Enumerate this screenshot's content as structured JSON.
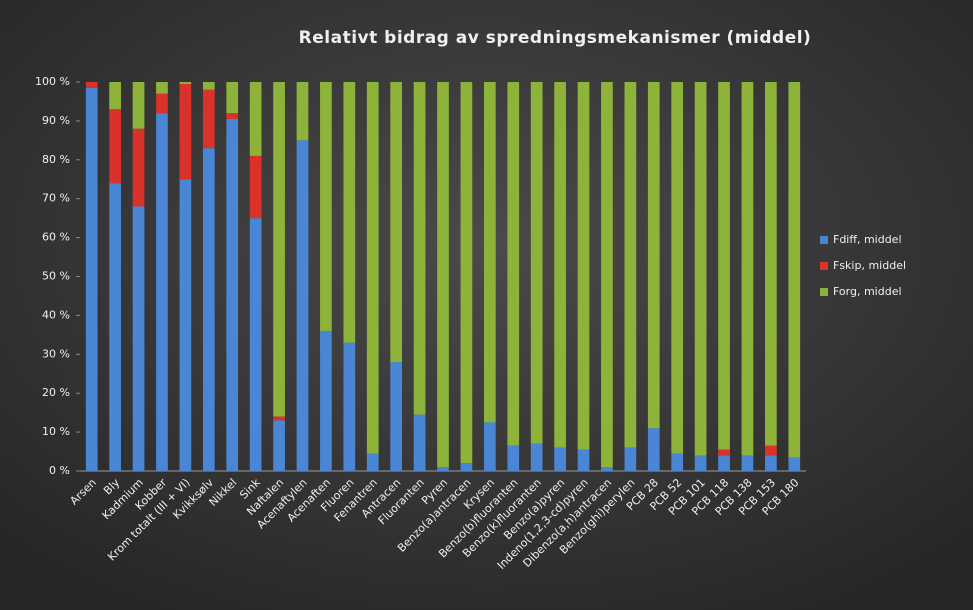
{
  "chart_data": {
    "type": "stacked_bar",
    "title": "Relativt bidrag av spredningsmekanismer (middel)",
    "categories": [
      "Arsen",
      "Bly",
      "Kadmium",
      "Kobber",
      "Krom totalt (III + VI)",
      "Kvikksølv",
      "Nikkel",
      "Sink",
      "Naftalen",
      "Acenaftylen",
      "Acenaften",
      "Fluoren",
      "Fenantren",
      "Antracen",
      "Fluoranten",
      "Pyren",
      "Benzo(a)antracen",
      "Krysen",
      "Benzo(b)fluoranten",
      "Benzo(k)fluoranten",
      "Benzo(a)pyren",
      "Indeno(1,2,3-cd)pyren",
      "Dibenzo(a,h)antracen",
      "Benzo(ghi)perylen",
      "PCB 28",
      "PCB 52",
      "PCB 101",
      "PCB 118",
      "PCB 138",
      "PCB 153",
      "PCB 180"
    ],
    "series": [
      {
        "name": "Fdiff, middel",
        "color": "#4a86d4",
        "values": [
          98.5,
          74,
          68,
          92,
          75,
          83,
          90.5,
          65,
          13,
          85,
          36,
          33,
          4.5,
          28,
          14.5,
          1,
          2,
          12.5,
          6.5,
          7,
          6,
          5.5,
          1,
          6,
          11,
          4.5,
          4,
          4,
          4,
          4,
          3.5
        ]
      },
      {
        "name": "Fskip, middel",
        "color": "#d9322b",
        "values": [
          1.5,
          19,
          20,
          5,
          24.5,
          15,
          1.5,
          16,
          1,
          0,
          0,
          0,
          0,
          0,
          0,
          0,
          0,
          0,
          0,
          0,
          0,
          0,
          0,
          0,
          0,
          0,
          0,
          1.5,
          0,
          2.5,
          0
        ]
      },
      {
        "name": "Forg, middel",
        "color": "#8db33a",
        "values": [
          0,
          7,
          12,
          3,
          0.5,
          2,
          8,
          19,
          86,
          15,
          64,
          67,
          95.5,
          72,
          85.5,
          99,
          98,
          87.5,
          93.5,
          93,
          94,
          94.5,
          99,
          94,
          89,
          95.5,
          96,
          94.5,
          96,
          93.5,
          96.5
        ]
      }
    ],
    "ylim": [
      0,
      100
    ],
    "yticks": [
      {
        "value": 0,
        "label": "0 %"
      },
      {
        "value": 10,
        "label": "10 %"
      },
      {
        "value": 20,
        "label": "20 %"
      },
      {
        "value": 30,
        "label": "30 %"
      },
      {
        "value": 40,
        "label": "40 %"
      },
      {
        "value": 50,
        "label": "50 %"
      },
      {
        "value": 60,
        "label": "60 %"
      },
      {
        "value": 70,
        "label": "70 %"
      },
      {
        "value": 80,
        "label": "80 %"
      },
      {
        "value": 90,
        "label": "90 %"
      },
      {
        "value": 100,
        "label": "100 %"
      }
    ],
    "grid": false,
    "legend": "right"
  }
}
